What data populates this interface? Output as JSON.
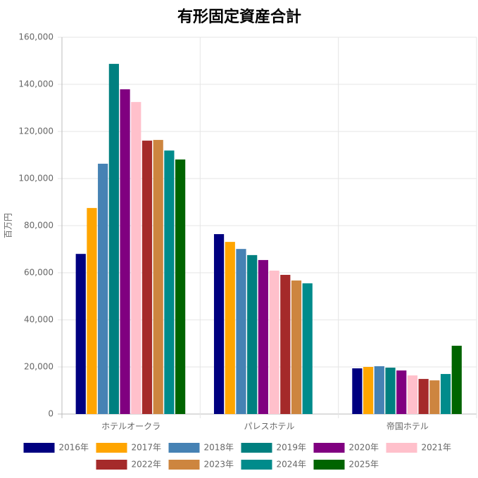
{
  "chart_data": {
    "type": "bar",
    "title": "有形固定資産合計",
    "y_label": "百万円",
    "categories": [
      "ホテルオークラ",
      "パレスホテル",
      "帝国ホテル"
    ],
    "series": [
      {
        "name": "2016年",
        "color": "#000080",
        "values": [
          68000,
          76400,
          19400
        ]
      },
      {
        "name": "2017年",
        "color": "#FFA500",
        "values": [
          87500,
          73100,
          20000
        ]
      },
      {
        "name": "2018年",
        "color": "#4682B4",
        "values": [
          106300,
          70100,
          20300
        ]
      },
      {
        "name": "2019年",
        "color": "#008080",
        "values": [
          148700,
          67500,
          19700
        ]
      },
      {
        "name": "2020年",
        "color": "#800080",
        "values": [
          137900,
          65400,
          18500
        ]
      },
      {
        "name": "2021年",
        "color": "#FFC0CB",
        "values": [
          132500,
          60900,
          16400
        ]
      },
      {
        "name": "2022年",
        "color": "#A52A2A",
        "values": [
          116100,
          59100,
          14900
        ]
      },
      {
        "name": "2023年",
        "color": "#CD853F",
        "values": [
          116400,
          56700,
          14300
        ]
      },
      {
        "name": "2024年",
        "color": "#008B8B",
        "values": [
          111900,
          55500,
          17000
        ]
      },
      {
        "name": "2025年",
        "color": "#006400",
        "values": [
          108100,
          null,
          29000
        ]
      }
    ],
    "ylim": [
      0,
      160000
    ],
    "yticks": [
      0,
      {
        "value": 20000,
        "label": "20,000"
      },
      {
        "value": 40000,
        "label": "40,000"
      },
      {
        "value": 60000,
        "label": "60,000"
      },
      {
        "value": 80000,
        "label": "80,000"
      },
      {
        "value": 100000,
        "label": "100,000"
      },
      {
        "value": 120000,
        "label": "120,000"
      },
      {
        "value": 140000,
        "label": "140,000"
      },
      {
        "value": 160000,
        "label": "160,000"
      }
    ],
    "grid": true
  }
}
